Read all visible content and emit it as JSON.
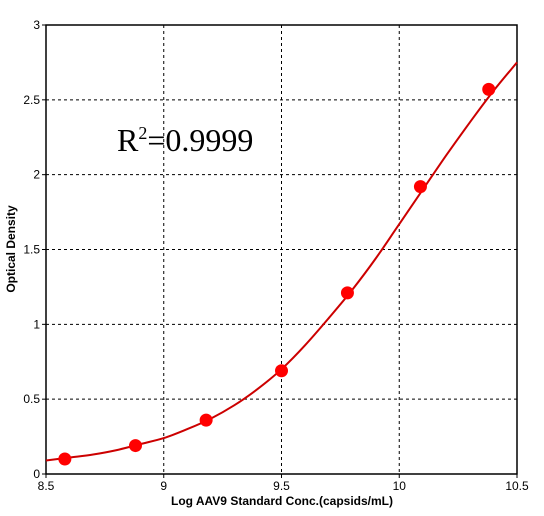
{
  "chart_data": {
    "type": "scatter",
    "title": "",
    "xlabel": "Log AAV9 Standard Conc.(capsids/mL)",
    "ylabel": "Optical Density",
    "xlim": [
      8.5,
      10.5
    ],
    "ylim": [
      0,
      3
    ],
    "grid": true,
    "grid_style": "dashed",
    "xticks": [
      "8.5",
      "9",
      "9.5",
      "10",
      "10.5"
    ],
    "yticks": [
      "0",
      "0.5",
      "1",
      "1.5",
      "2",
      "2.5",
      "3"
    ],
    "series": [
      {
        "x": [
          8.58,
          8.88,
          9.18,
          9.5,
          9.78,
          10.09,
          10.38
        ],
        "y": [
          0.1,
          0.19,
          0.36,
          0.69,
          1.21,
          1.92,
          2.57
        ],
        "color": "#ff0000",
        "marker": "filled-circle"
      }
    ],
    "fit_curve": {
      "color": "#cc0000",
      "x": [
        8.5,
        8.6,
        8.7,
        8.8,
        8.9,
        9.0,
        9.1,
        9.2,
        9.3,
        9.4,
        9.5,
        9.6,
        9.7,
        9.8,
        9.9,
        10.0,
        10.1,
        10.2,
        10.3,
        10.4,
        10.5
      ],
      "y": [
        0.09,
        0.11,
        0.13,
        0.16,
        0.2,
        0.24,
        0.3,
        0.37,
        0.46,
        0.57,
        0.7,
        0.86,
        1.04,
        1.23,
        1.44,
        1.67,
        1.9,
        2.13,
        2.35,
        2.56,
        2.75
      ]
    },
    "annotation": {
      "prefix": "R",
      "superscript": "2",
      "suffix": "=0.9999"
    }
  }
}
